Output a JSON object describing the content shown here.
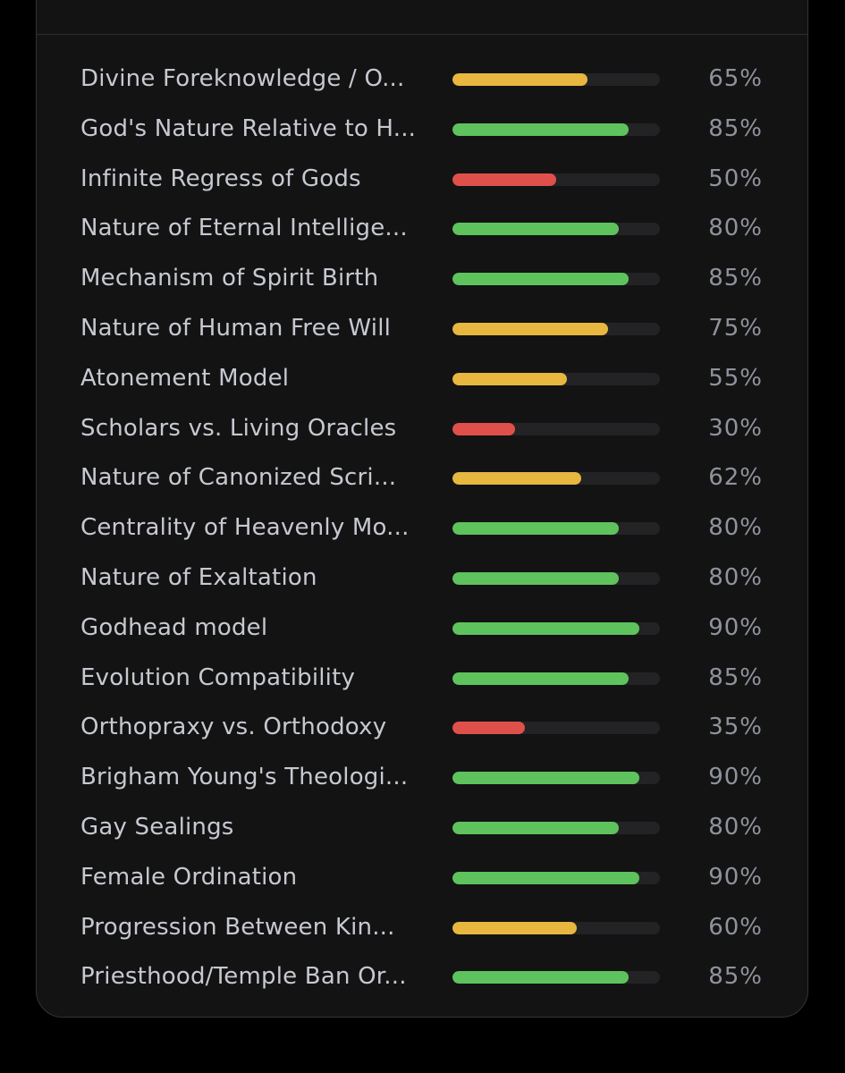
{
  "colors": {
    "high": "#5ec35c",
    "medium": "#e7b73f",
    "low": "#e0504a"
  },
  "items": [
    {
      "label": "Divine Foreknowledge / O...",
      "percent_text": "65%",
      "value": 65,
      "level": "medium"
    },
    {
      "label": "God's Nature Relative to H...",
      "percent_text": "85%",
      "value": 85,
      "level": "high"
    },
    {
      "label": "Infinite Regress of Gods",
      "percent_text": "50%",
      "value": 50,
      "level": "low"
    },
    {
      "label": "Nature of Eternal Intellige...",
      "percent_text": "80%",
      "value": 80,
      "level": "high"
    },
    {
      "label": "Mechanism of Spirit Birth",
      "percent_text": "85%",
      "value": 85,
      "level": "high"
    },
    {
      "label": "Nature of Human Free Will",
      "percent_text": "75%",
      "value": 75,
      "level": "medium"
    },
    {
      "label": "Atonement Model",
      "percent_text": "55%",
      "value": 55,
      "level": "medium"
    },
    {
      "label": "Scholars vs. Living Oracles",
      "percent_text": "30%",
      "value": 30,
      "level": "low"
    },
    {
      "label": "Nature of Canonized Scri...",
      "percent_text": "62%",
      "value": 62,
      "level": "medium"
    },
    {
      "label": "Centrality of Heavenly Mo...",
      "percent_text": "80%",
      "value": 80,
      "level": "high"
    },
    {
      "label": "Nature of Exaltation",
      "percent_text": "80%",
      "value": 80,
      "level": "high"
    },
    {
      "label": "Godhead model",
      "percent_text": "90%",
      "value": 90,
      "level": "high"
    },
    {
      "label": "Evolution Compatibility",
      "percent_text": "85%",
      "value": 85,
      "level": "high"
    },
    {
      "label": "Orthopraxy vs. Orthodoxy",
      "percent_text": "35%",
      "value": 35,
      "level": "low"
    },
    {
      "label": "Brigham Young's Theologi...",
      "percent_text": "90%",
      "value": 90,
      "level": "high"
    },
    {
      "label": "Gay Sealings",
      "percent_text": "80%",
      "value": 80,
      "level": "high"
    },
    {
      "label": "Female Ordination",
      "percent_text": "90%",
      "value": 90,
      "level": "high"
    },
    {
      "label": "Progression Between Kin...",
      "percent_text": "60%",
      "value": 60,
      "level": "medium"
    },
    {
      "label": "Priesthood/Temple Ban Or...",
      "percent_text": "85%",
      "value": 85,
      "level": "high"
    }
  ]
}
